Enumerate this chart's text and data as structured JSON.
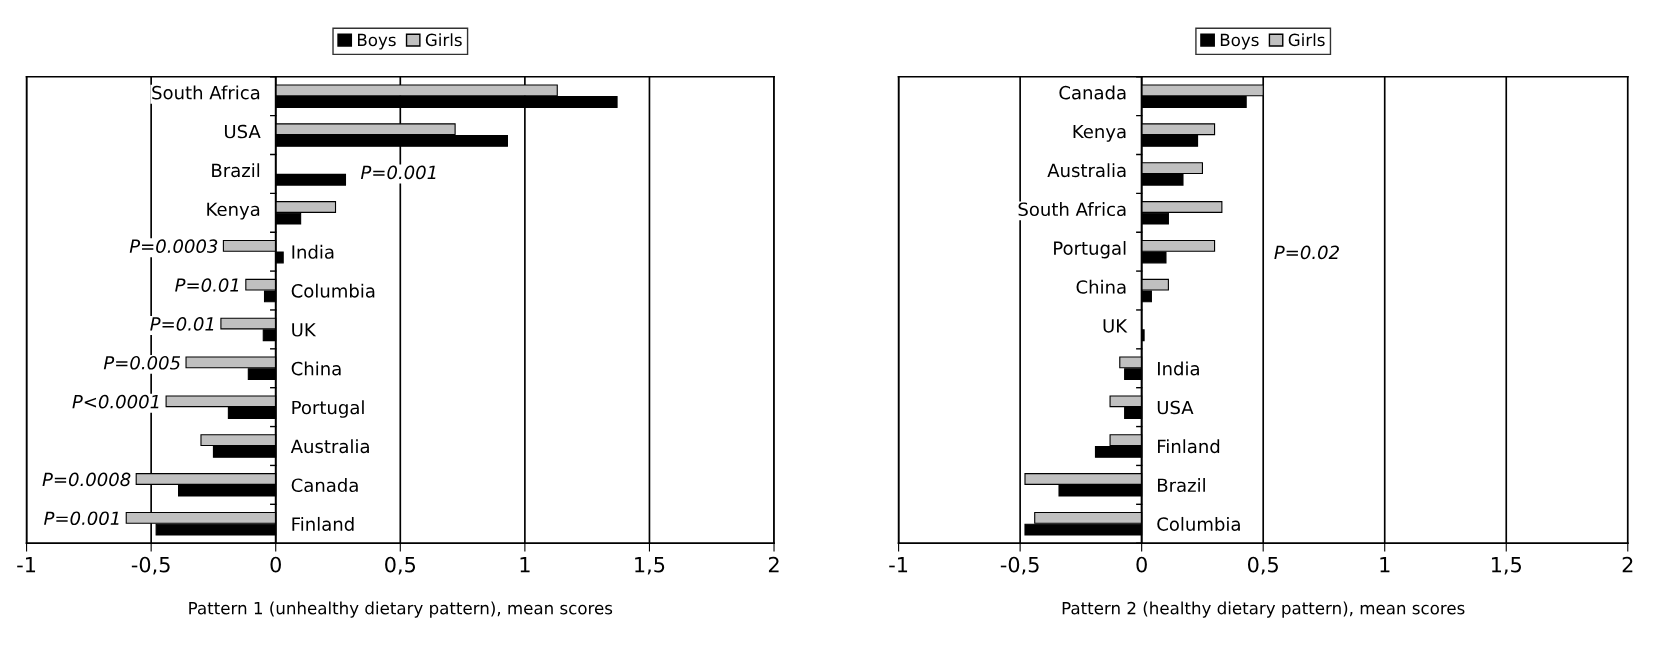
{
  "chart_data": [
    {
      "type": "bar",
      "orientation": "horizontal",
      "xlabel": "Pattern 1 (unhealthy dietary pattern), mean scores",
      "categories": [
        "South Africa",
        "USA",
        "Brazil",
        "Kenya",
        "India",
        "Columbia",
        "UK",
        "China",
        "Portugal",
        "Australia",
        "Canada",
        "Finland"
      ],
      "series": [
        {
          "name": "Boys",
          "color": "#000000",
          "values": [
            1.37,
            0.93,
            0.28,
            0.1,
            0.03,
            -0.045,
            -0.05,
            -0.11,
            -0.19,
            -0.25,
            -0.39,
            -0.48
          ]
        },
        {
          "name": "Girls",
          "color": "#c0c0c0",
          "values": [
            1.13,
            0.72,
            null,
            0.24,
            -0.21,
            -0.12,
            -0.22,
            -0.36,
            -0.44,
            -0.3,
            -0.56,
            -0.6
          ]
        }
      ],
      "xlim": [
        -1,
        2
      ],
      "xticks": [
        {
          "value": -1,
          "label": "-1"
        },
        {
          "value": -0.5,
          "label": "-0,5"
        },
        {
          "value": 0,
          "label": "0"
        },
        {
          "value": 0.5,
          "label": "0,5"
        },
        {
          "value": 1,
          "label": "1"
        },
        {
          "value": 1.5,
          "label": "1,5"
        },
        {
          "value": 2,
          "label": "2"
        }
      ],
      "grid": "x",
      "legend": "top",
      "annotations": [
        {
          "text": "P=0.001",
          "x": 0.28,
          "y": "Brazil"
        },
        {
          "text": "P=0.0003",
          "x": -0.21,
          "y": "India"
        },
        {
          "text": "P=0.01",
          "x": -0.12,
          "y": "Columbia"
        },
        {
          "text": "P=0.01",
          "x": -0.22,
          "y": "UK"
        },
        {
          "text": "P=0.005",
          "x": -0.36,
          "y": "China"
        },
        {
          "text": "P<0.0001",
          "x": -0.44,
          "y": "Portugal"
        },
        {
          "text": "P=0.0008",
          "x": -0.56,
          "y": "Canada"
        },
        {
          "text": "P=0.001",
          "x": -0.6,
          "y": "Finland"
        }
      ]
    },
    {
      "type": "bar",
      "orientation": "horizontal",
      "xlabel": "Pattern 2 (healthy dietary pattern), mean scores",
      "categories": [
        "Canada",
        "Kenya",
        "Australia",
        "South Africa",
        "Portugal",
        "China",
        "UK",
        "India",
        "USA",
        "Finland",
        "Brazil",
        "Columbia"
      ],
      "series": [
        {
          "name": "Boys",
          "color": "#000000",
          "values": [
            0.43,
            0.23,
            0.17,
            0.11,
            0.1,
            0.04,
            0.01,
            -0.07,
            -0.07,
            -0.19,
            -0.34,
            -0.48
          ]
        },
        {
          "name": "Girls",
          "color": "#c0c0c0",
          "values": [
            0.5,
            0.3,
            0.25,
            0.33,
            0.3,
            0.11,
            null,
            -0.09,
            -0.13,
            -0.13,
            -0.48,
            -0.44
          ]
        }
      ],
      "xlim": [
        -1,
        2
      ],
      "xticks": [
        {
          "value": -1,
          "label": "-1"
        },
        {
          "value": -0.5,
          "label": "-0,5"
        },
        {
          "value": 0,
          "label": "0"
        },
        {
          "value": 0.5,
          "label": "0,5"
        },
        {
          "value": 1,
          "label": "1"
        },
        {
          "value": 1.5,
          "label": "1,5"
        },
        {
          "value": 2,
          "label": "2"
        }
      ],
      "grid": "x",
      "legend": "top",
      "annotations": [
        "P=0.02"
      ]
    }
  ]
}
